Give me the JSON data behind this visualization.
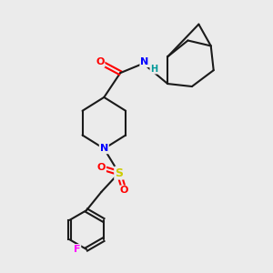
{
  "background_color": "#ebebeb",
  "bond_color": "#1a1a1a",
  "atom_colors": {
    "O": "#ff0000",
    "N": "#0000ff",
    "S": "#cccc00",
    "F": "#ff00ff",
    "H": "#009999",
    "C": "#1a1a1a"
  },
  "figsize": [
    3.0,
    3.0
  ],
  "dpi": 100
}
